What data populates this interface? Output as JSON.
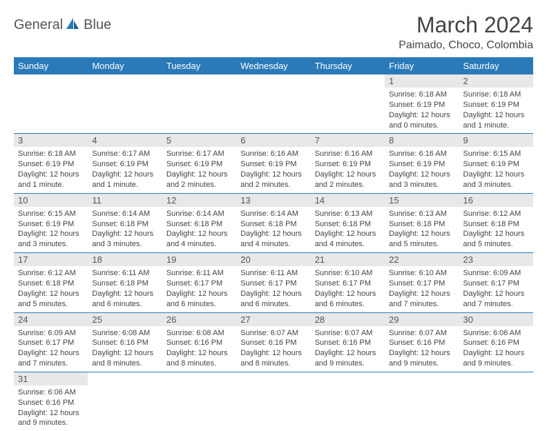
{
  "logo": {
    "text1": "General",
    "text2": "Blue"
  },
  "title": "March 2024",
  "location": "Paimado, Choco, Colombia",
  "colors": {
    "header_bg": "#2a7ab9",
    "header_text": "#ffffff",
    "daynum_bg": "#e8e8e8",
    "border": "#2a7ab9",
    "text": "#444444"
  },
  "daynames": [
    "Sunday",
    "Monday",
    "Tuesday",
    "Wednesday",
    "Thursday",
    "Friday",
    "Saturday"
  ],
  "first_weekday": 5,
  "days": [
    {
      "n": 1,
      "sunrise": "6:18 AM",
      "sunset": "6:19 PM",
      "daylight": "12 hours and 0 minutes."
    },
    {
      "n": 2,
      "sunrise": "6:18 AM",
      "sunset": "6:19 PM",
      "daylight": "12 hours and 1 minute."
    },
    {
      "n": 3,
      "sunrise": "6:18 AM",
      "sunset": "6:19 PM",
      "daylight": "12 hours and 1 minute."
    },
    {
      "n": 4,
      "sunrise": "6:17 AM",
      "sunset": "6:19 PM",
      "daylight": "12 hours and 1 minute."
    },
    {
      "n": 5,
      "sunrise": "6:17 AM",
      "sunset": "6:19 PM",
      "daylight": "12 hours and 2 minutes."
    },
    {
      "n": 6,
      "sunrise": "6:16 AM",
      "sunset": "6:19 PM",
      "daylight": "12 hours and 2 minutes."
    },
    {
      "n": 7,
      "sunrise": "6:16 AM",
      "sunset": "6:19 PM",
      "daylight": "12 hours and 2 minutes."
    },
    {
      "n": 8,
      "sunrise": "6:16 AM",
      "sunset": "6:19 PM",
      "daylight": "12 hours and 3 minutes."
    },
    {
      "n": 9,
      "sunrise": "6:15 AM",
      "sunset": "6:19 PM",
      "daylight": "12 hours and 3 minutes."
    },
    {
      "n": 10,
      "sunrise": "6:15 AM",
      "sunset": "6:19 PM",
      "daylight": "12 hours and 3 minutes."
    },
    {
      "n": 11,
      "sunrise": "6:14 AM",
      "sunset": "6:18 PM",
      "daylight": "12 hours and 3 minutes."
    },
    {
      "n": 12,
      "sunrise": "6:14 AM",
      "sunset": "6:18 PM",
      "daylight": "12 hours and 4 minutes."
    },
    {
      "n": 13,
      "sunrise": "6:14 AM",
      "sunset": "6:18 PM",
      "daylight": "12 hours and 4 minutes."
    },
    {
      "n": 14,
      "sunrise": "6:13 AM",
      "sunset": "6:18 PM",
      "daylight": "12 hours and 4 minutes."
    },
    {
      "n": 15,
      "sunrise": "6:13 AM",
      "sunset": "6:18 PM",
      "daylight": "12 hours and 5 minutes."
    },
    {
      "n": 16,
      "sunrise": "6:12 AM",
      "sunset": "6:18 PM",
      "daylight": "12 hours and 5 minutes."
    },
    {
      "n": 17,
      "sunrise": "6:12 AM",
      "sunset": "6:18 PM",
      "daylight": "12 hours and 5 minutes."
    },
    {
      "n": 18,
      "sunrise": "6:11 AM",
      "sunset": "6:18 PM",
      "daylight": "12 hours and 6 minutes."
    },
    {
      "n": 19,
      "sunrise": "6:11 AM",
      "sunset": "6:17 PM",
      "daylight": "12 hours and 6 minutes."
    },
    {
      "n": 20,
      "sunrise": "6:11 AM",
      "sunset": "6:17 PM",
      "daylight": "12 hours and 6 minutes."
    },
    {
      "n": 21,
      "sunrise": "6:10 AM",
      "sunset": "6:17 PM",
      "daylight": "12 hours and 6 minutes."
    },
    {
      "n": 22,
      "sunrise": "6:10 AM",
      "sunset": "6:17 PM",
      "daylight": "12 hours and 7 minutes."
    },
    {
      "n": 23,
      "sunrise": "6:09 AM",
      "sunset": "6:17 PM",
      "daylight": "12 hours and 7 minutes."
    },
    {
      "n": 24,
      "sunrise": "6:09 AM",
      "sunset": "6:17 PM",
      "daylight": "12 hours and 7 minutes."
    },
    {
      "n": 25,
      "sunrise": "6:08 AM",
      "sunset": "6:16 PM",
      "daylight": "12 hours and 8 minutes."
    },
    {
      "n": 26,
      "sunrise": "6:08 AM",
      "sunset": "6:16 PM",
      "daylight": "12 hours and 8 minutes."
    },
    {
      "n": 27,
      "sunrise": "6:07 AM",
      "sunset": "6:16 PM",
      "daylight": "12 hours and 8 minutes."
    },
    {
      "n": 28,
      "sunrise": "6:07 AM",
      "sunset": "6:16 PM",
      "daylight": "12 hours and 9 minutes."
    },
    {
      "n": 29,
      "sunrise": "6:07 AM",
      "sunset": "6:16 PM",
      "daylight": "12 hours and 9 minutes."
    },
    {
      "n": 30,
      "sunrise": "6:06 AM",
      "sunset": "6:16 PM",
      "daylight": "12 hours and 9 minutes."
    },
    {
      "n": 31,
      "sunrise": "6:06 AM",
      "sunset": "6:16 PM",
      "daylight": "12 hours and 9 minutes."
    }
  ],
  "labels": {
    "sunrise": "Sunrise:",
    "sunset": "Sunset:",
    "daylight": "Daylight:"
  }
}
